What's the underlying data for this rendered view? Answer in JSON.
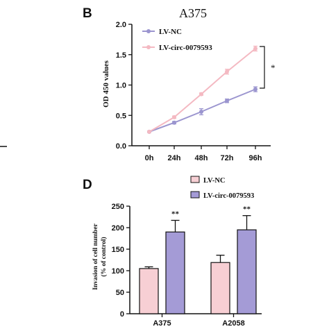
{
  "colors": {
    "nc_line": "#9b95cf",
    "circ_line": "#f4b9c2",
    "nc_bar": "#a49bd6",
    "circ_bar": "#f7cfd4",
    "axis": "#111111"
  },
  "chart_data": [
    {
      "panel_label": "B",
      "type": "line",
      "title": "A375",
      "xlabel": "",
      "ylabel": "OD 450 values",
      "categories": [
        "0h",
        "24h",
        "48h",
        "72h",
        "96h"
      ],
      "y_ticks": [
        "0.0",
        "0.5",
        "1.0",
        "1.5",
        "2.0"
      ],
      "ylim": [
        0,
        2.0
      ],
      "series": [
        {
          "name": "LV-NC",
          "values": [
            0.23,
            0.38,
            0.56,
            0.74,
            0.93
          ],
          "errors": [
            0.01,
            0.02,
            0.05,
            0.03,
            0.04
          ]
        },
        {
          "name": "LV-circ-0079593",
          "values": [
            0.23,
            0.47,
            0.85,
            1.22,
            1.6
          ],
          "errors": [
            0.01,
            0.02,
            0.02,
            0.04,
            0.04
          ]
        }
      ],
      "significance": "*",
      "legend_position": "top-left",
      "grid": false
    },
    {
      "panel_label": "D",
      "type": "bar",
      "title": "",
      "xlabel": "",
      "ylabel_lines": [
        "Invasion of cell number",
        "(% of control)"
      ],
      "categories": [
        "A375",
        "A2058"
      ],
      "y_ticks": [
        "0",
        "50",
        "100",
        "150",
        "200",
        "250"
      ],
      "ylim": [
        0,
        250
      ],
      "series": [
        {
          "name": "LV-NC",
          "values": [
            105,
            119
          ],
          "errors": [
            4,
            17
          ]
        },
        {
          "name": "LV-circ-0079593",
          "values": [
            190,
            195
          ],
          "errors": [
            27,
            33
          ]
        }
      ],
      "significance": [
        "**",
        "**"
      ],
      "legend_position": "top-left",
      "grid": false
    }
  ]
}
